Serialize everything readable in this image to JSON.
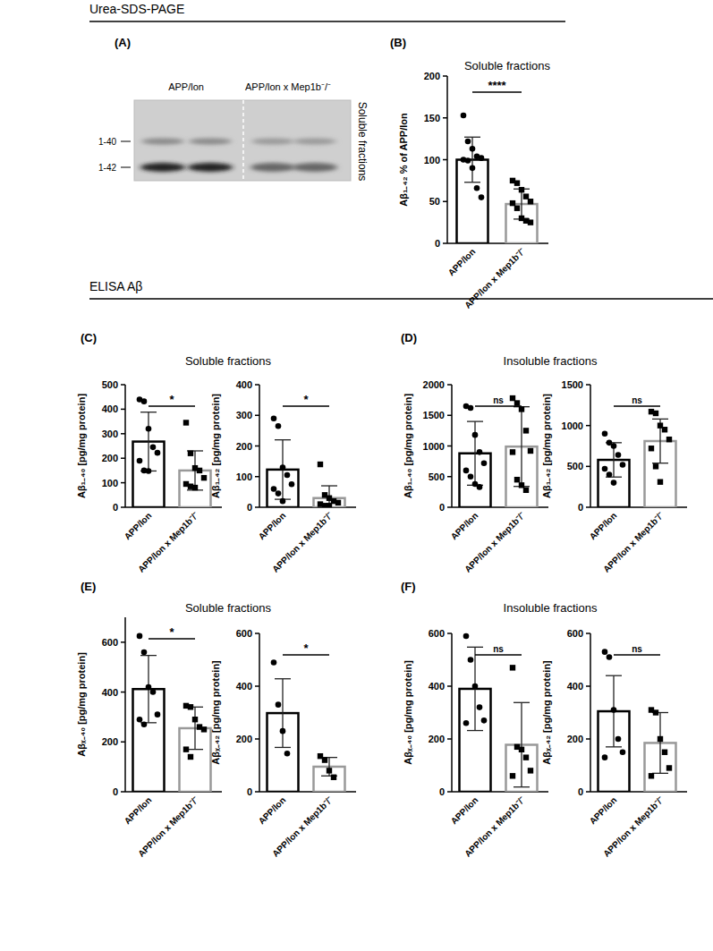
{
  "sections": [
    {
      "title": "Urea-SDS-PAGE"
    },
    {
      "title": "ELISA Aβ"
    }
  ],
  "blot": {
    "panel": "(A)",
    "groups": [
      "APP/lon",
      "APP/lon x Mep1b⁻/⁻"
    ],
    "bands": [
      "1-40",
      "1-42"
    ],
    "side_label": "Soluble fractions"
  },
  "panels": [
    {
      "label": "(B)",
      "title": "Soluble fractions"
    },
    {
      "label": "(C)",
      "title": "Soluble fractions"
    },
    {
      "label": "(D)",
      "title": "Insoluble fractions"
    },
    {
      "label": "(E)",
      "title": "Soluble fractions"
    },
    {
      "label": "(F)",
      "title": "Insoluble fractions"
    }
  ],
  "chart_data": [
    {
      "type": "bar",
      "y_label": "Aβ₁₋₄₂ % of APP/lon",
      "categories": [
        "APP/lon",
        "APP/lon x Mep1b⁻/⁻"
      ],
      "values": [
        100,
        47
      ],
      "errors": [
        27,
        18
      ],
      "points": [
        [
          153,
          122,
          113,
          104,
          102,
          100,
          99,
          90,
          66,
          55
        ],
        [
          75,
          72,
          64,
          56,
          50,
          48,
          42,
          30,
          27,
          25
        ]
      ],
      "colors": [
        "#000000",
        "#999999"
      ],
      "ylim": [
        0,
        200
      ],
      "yticks": [
        0,
        50,
        100,
        150,
        200
      ],
      "significance": "****"
    },
    {
      "type": "bar",
      "y_label": "Aβ₁₋₄₀ [pg/mg protein]",
      "categories": [
        "APP/lon",
        "APP/lon x Mep1b⁻/⁻"
      ],
      "values": [
        268,
        150
      ],
      "errors": [
        120,
        80
      ],
      "points": [
        [
          440,
          432,
          320,
          245,
          222,
          190,
          150,
          148
        ],
        [
          345,
          220,
          160,
          150,
          120,
          95,
          85,
          80
        ]
      ],
      "colors": [
        "#000000",
        "#999999"
      ],
      "ylim": [
        0,
        500
      ],
      "yticks": [
        0,
        100,
        200,
        300,
        400,
        500
      ],
      "significance": "*"
    },
    {
      "type": "bar",
      "y_label": "Aβ₁₋₄₂ [pg/mg protein]",
      "categories": [
        "APP/lon",
        "APP/lon x Mep1b⁻/⁻"
      ],
      "values": [
        123,
        30
      ],
      "errors": [
        97,
        40
      ],
      "points": [
        [
          290,
          265,
          130,
          105,
          75,
          60,
          45,
          20
        ],
        [
          140,
          40,
          30,
          20,
          15,
          10,
          5,
          5
        ]
      ],
      "colors": [
        "#000000",
        "#999999"
      ],
      "ylim": [
        0,
        400
      ],
      "yticks": [
        0,
        100,
        200,
        300,
        400
      ],
      "significance": "*"
    },
    {
      "type": "bar",
      "y_label": "Aβ₁₋₄₀ [pg/mg protein]",
      "categories": [
        "APP/lon",
        "APP/lon x Mep1b⁻/⁻"
      ],
      "values": [
        880,
        990
      ],
      "errors": [
        520,
        650
      ],
      "points": [
        [
          1650,
          1620,
          1180,
          900,
          720,
          600,
          500,
          380,
          330
        ],
        [
          1780,
          1700,
          1600,
          1250,
          920,
          900,
          450,
          360,
          280
        ]
      ],
      "colors": [
        "#000000",
        "#999999"
      ],
      "ylim": [
        0,
        2000
      ],
      "yticks": [
        0,
        500,
        1000,
        1500,
        2000
      ],
      "significance": "ns"
    },
    {
      "type": "bar",
      "y_label": "Aβ₁₋₄₂ [pg/mg protein]",
      "categories": [
        "APP/lon",
        "APP/lon x Mep1b⁻/⁻"
      ],
      "values": [
        580,
        810
      ],
      "errors": [
        210,
        270
      ],
      "points": [
        [
          900,
          790,
          750,
          640,
          520,
          470,
          400,
          300
        ],
        [
          1170,
          1150,
          1000,
          950,
          830,
          720,
          500,
          310
        ]
      ],
      "colors": [
        "#000000",
        "#999999"
      ],
      "ylim": [
        0,
        1500
      ],
      "yticks": [
        0,
        500,
        1000,
        1500
      ],
      "significance": "ns"
    },
    {
      "type": "bar",
      "y_label": "Aβₓ₋₄₀ [pg/mg protein]",
      "categories": [
        "APP/lon",
        "APP/lon x Mep1b⁻/⁻"
      ],
      "values": [
        412,
        255
      ],
      "errors": [
        135,
        85
      ],
      "points": [
        [
          625,
          560,
          420,
          400,
          310,
          290,
          270
        ],
        [
          345,
          340,
          290,
          260,
          250,
          170,
          140
        ]
      ],
      "colors": [
        "#000000",
        "#999999"
      ],
      "ylim": [
        0,
        700
      ],
      "yticks": [
        0,
        200,
        400,
        600
      ],
      "significance": "*"
    },
    {
      "type": "bar",
      "y_label": "Aβₓ₋₄₂ [pg/mg protein]",
      "categories": [
        "APP/lon",
        "APP/lon x Mep1b⁻/⁻"
      ],
      "values": [
        298,
        95
      ],
      "errors": [
        130,
        35
      ],
      "points": [
        [
          490,
          330,
          230,
          145
        ],
        [
          135,
          120,
          80,
          55
        ]
      ],
      "colors": [
        "#000000",
        "#999999"
      ],
      "ylim": [
        0,
        600
      ],
      "yticks": [
        0,
        200,
        400,
        600
      ],
      "significance": "*"
    },
    {
      "type": "bar",
      "y_label": "Aβₓ₋₄₀ [pg/mg protein]",
      "categories": [
        "APP/lon",
        "APP/lon x Mep1b⁻/⁻"
      ],
      "values": [
        390,
        178
      ],
      "errors": [
        158,
        160
      ],
      "points": [
        [
          590,
          500,
          400,
          320,
          270,
          260
        ],
        [
          470,
          170,
          160,
          130,
          80,
          60
        ]
      ],
      "colors": [
        "#000000",
        "#999999"
      ],
      "ylim": [
        0,
        600
      ],
      "yticks": [
        0,
        200,
        400,
        600
      ],
      "significance": "ns"
    },
    {
      "type": "bar",
      "y_label": "Aβₓ₋₄₂ [pg/mg protein]",
      "categories": [
        "APP/lon",
        "APP/lon x Mep1b⁻/⁻"
      ],
      "values": [
        305,
        185
      ],
      "errors": [
        135,
        115
      ],
      "points": [
        [
          530,
          510,
          310,
          200,
          150,
          130
        ],
        [
          310,
          300,
          200,
          150,
          90,
          60
        ]
      ],
      "colors": [
        "#000000",
        "#999999"
      ],
      "ylim": [
        0,
        600
      ],
      "yticks": [
        0,
        200,
        400,
        600
      ],
      "significance": "ns"
    }
  ]
}
